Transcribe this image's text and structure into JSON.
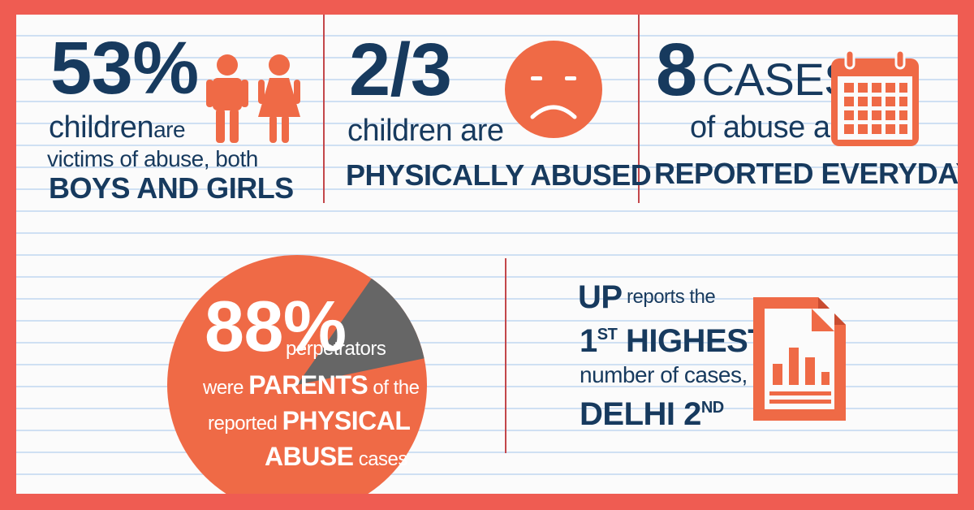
{
  "colors": {
    "border": "#ef5c52",
    "navy": "#173a5e",
    "orange": "#ef6a46",
    "grey": "#666666",
    "divider": "#c3474b"
  },
  "stat1": {
    "value": "53%",
    "line1_a": "children",
    "line1_b": "are",
    "line2": "victims of abuse, both",
    "line3": "BOYS AND GIRLS",
    "icon": "boy-girl-icon"
  },
  "stat2": {
    "value": "2/3",
    "line1": "children are",
    "line2": "PHYSICALLY ABUSED",
    "icon": "sad-face-icon"
  },
  "stat3": {
    "value": "8",
    "value_suffix": "CASES",
    "line1": "of abuse are",
    "line2": "REPORTED EVERYDAY",
    "icon": "calendar-icon"
  },
  "pie": {
    "value": "88%",
    "word1": "perpetrators",
    "word2": "were",
    "word3": "PARENTS",
    "word4": "of the",
    "word5": "reported",
    "word6": "PHYSICAL",
    "word7": "ABUSE",
    "word8": "cases",
    "share_parents": 0.88,
    "share_other": 0.12
  },
  "stat4": {
    "up": "UP",
    "reports": "reports the",
    "rank_num": "1",
    "rank_sup": "ST",
    "highest": "HIGHEST",
    "number": "number of cases,",
    "delhi": "DELHI 2",
    "delhi_sup": "ND",
    "icon": "document-chart-icon"
  }
}
